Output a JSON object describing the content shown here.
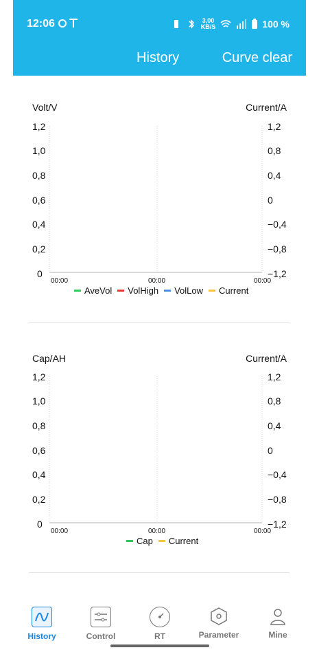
{
  "status_bar": {
    "time": "12:06",
    "speed_top": "3,00",
    "speed_bottom": "KB/S",
    "battery": "100 %"
  },
  "header": {
    "title": "History",
    "action": "Curve clear",
    "colors": {
      "bar": "#20b5e9",
      "text": "#ffffff"
    }
  },
  "charts": [
    {
      "left_axis_title": "Volt/V",
      "right_axis_title": "Current/A",
      "left_ticks": [
        "1,2",
        "1,0",
        "0,8",
        "0,6",
        "0,4",
        "0,2",
        "0"
      ],
      "right_ticks": [
        "1,2",
        "0,8",
        "0,4",
        "0",
        "−0,4",
        "−0,8",
        "−1,2"
      ],
      "x_ticks": [
        "00:00",
        "00:00",
        "00:00"
      ],
      "legend": [
        {
          "label": "AveVol",
          "color": "#34c759"
        },
        {
          "label": "VolHigh",
          "color": "#e53935"
        },
        {
          "label": "VolLow",
          "color": "#4a90e2"
        },
        {
          "label": "Current",
          "color": "#f5c542"
        }
      ]
    },
    {
      "left_axis_title": "Cap/AH",
      "right_axis_title": "Current/A",
      "left_ticks": [
        "1,2",
        "1,0",
        "0,8",
        "0,6",
        "0,4",
        "0,2",
        "0"
      ],
      "right_ticks": [
        "1,2",
        "0,8",
        "0,4",
        "0",
        "−0,4",
        "−0,8",
        "−1,2"
      ],
      "x_ticks": [
        "00:00",
        "00:00",
        "00:00"
      ],
      "legend": [
        {
          "label": "Cap",
          "color": "#34c759"
        },
        {
          "label": "Current",
          "color": "#f5c542"
        }
      ]
    }
  ],
  "bottom_nav": {
    "items": [
      {
        "label": "History",
        "icon": "history-icon",
        "active": true
      },
      {
        "label": "Control",
        "icon": "control-icon",
        "active": false
      },
      {
        "label": "RT",
        "icon": "rt-icon",
        "active": false
      },
      {
        "label": "Parameter",
        "icon": "parameter-icon",
        "active": false
      },
      {
        "label": "Mine",
        "icon": "mine-icon",
        "active": false
      }
    ],
    "colors": {
      "active": "#1c86e0",
      "inactive": "#777777"
    }
  }
}
